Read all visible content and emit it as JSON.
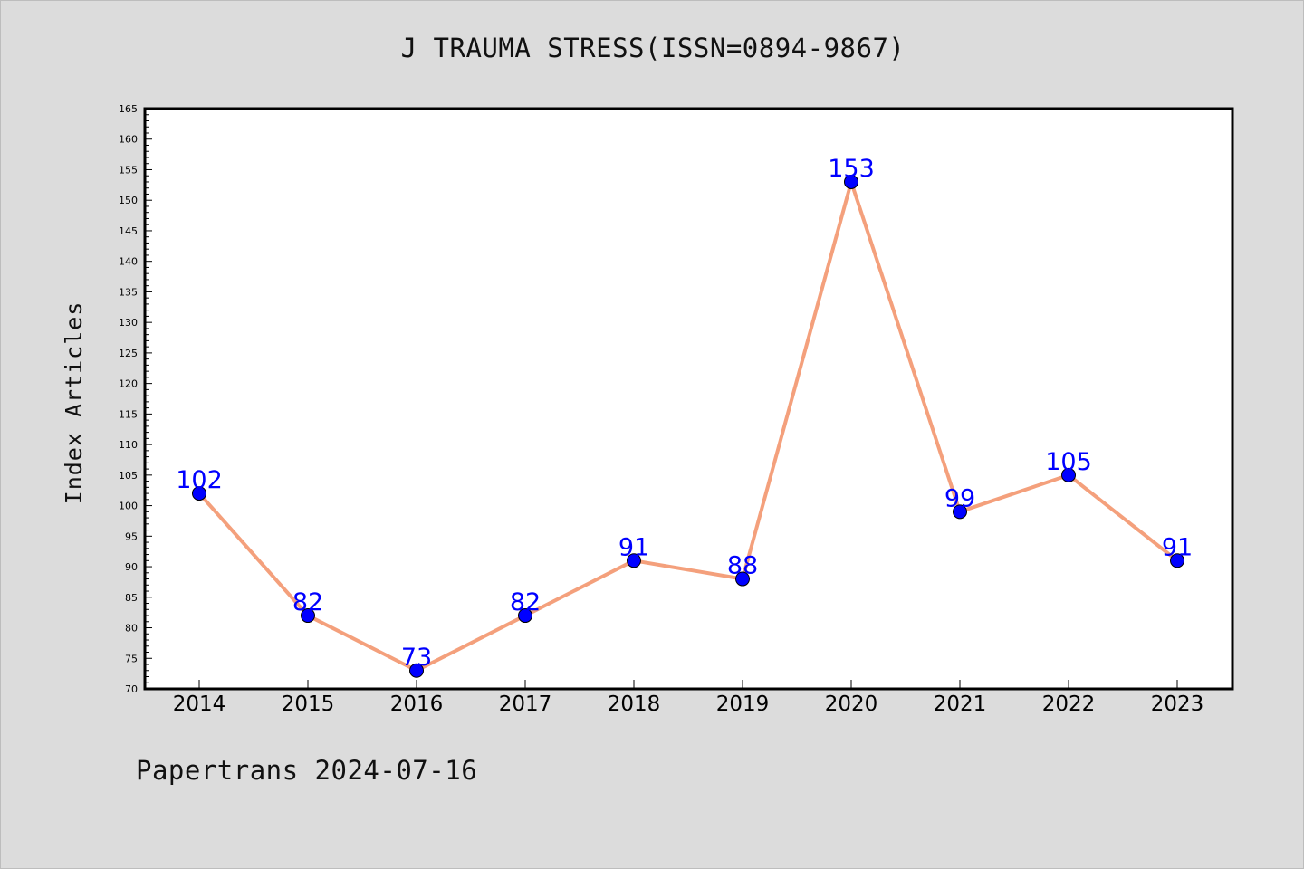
{
  "chart_data": {
    "type": "line",
    "title": "J TRAUMA STRESS(ISSN=0894-9867)",
    "xlabel": "",
    "ylabel": "Index Articles",
    "categories": [
      "2014",
      "2015",
      "2016",
      "2017",
      "2018",
      "2019",
      "2020",
      "2021",
      "2022",
      "2023"
    ],
    "series": [
      {
        "values": [
          102,
          82,
          73,
          82,
          91,
          88,
          153,
          99,
          105,
          91
        ]
      }
    ],
    "ylim": [
      70,
      165
    ],
    "yticks": [
      70,
      75,
      80,
      85,
      90,
      95,
      100,
      105,
      110,
      115,
      120,
      125,
      130,
      135,
      140,
      145,
      150,
      155,
      160,
      165
    ],
    "grid": false,
    "data_labels": true,
    "colors": {
      "line": "#f4a07c",
      "marker": "#0000ff",
      "label": "#0000ff",
      "background": "#dcdcdc",
      "plot_background": "#ffffff"
    }
  },
  "footer": "Papertrans 2024-07-16"
}
